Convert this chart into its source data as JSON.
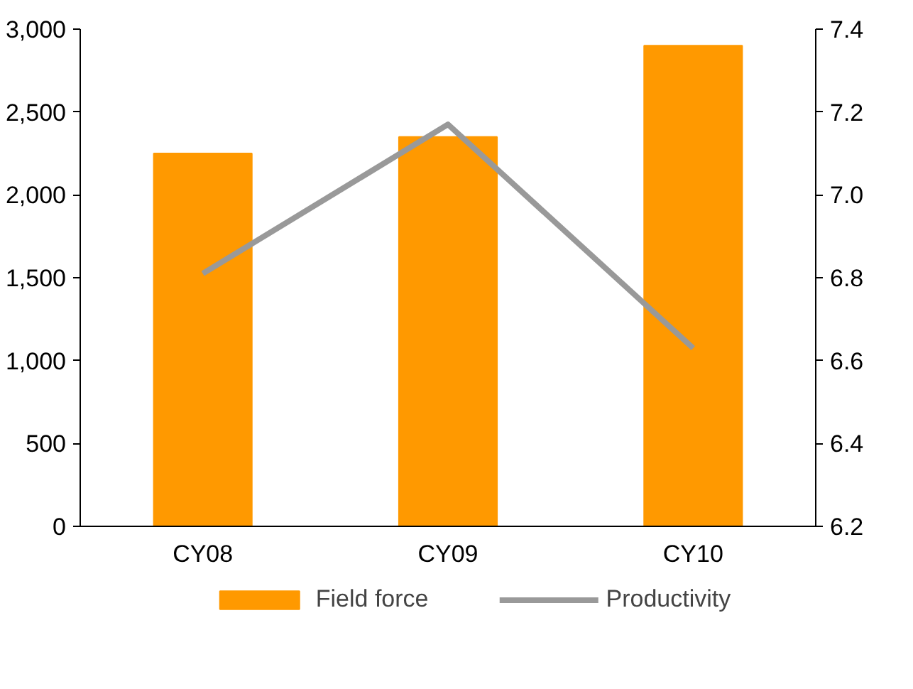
{
  "chart_data": {
    "type": "bar",
    "categories": [
      "CY08",
      "CY09",
      "CY10"
    ],
    "series": [
      {
        "name": "Field force",
        "color": "#ff9900",
        "values": [
          2250,
          2350,
          2900
        ]
      },
      {
        "name": "Productivity",
        "type": "line",
        "axis": "y2",
        "color": "#999999",
        "values": [
          6.81,
          7.17,
          6.63
        ]
      }
    ],
    "ylim": [
      0,
      3000
    ],
    "yticks": [
      0,
      500,
      {
        "value": 1000,
        "label": "1,000"
      },
      {
        "value": 1500,
        "label": "1,500"
      },
      {
        "value": 2000,
        "label": "2,000"
      },
      {
        "value": 2500,
        "label": "2,500"
      },
      {
        "value": 3000,
        "label": "3,000"
      }
    ],
    "y2lim": [
      6.2,
      7.4
    ],
    "y2ticks": [
      6.2,
      6.4,
      6.6,
      6.8,
      {
        "value": 7.0,
        "label": "7.0"
      },
      7.2,
      7.4
    ],
    "grid": false,
    "legend": "bottom",
    "line_style": "solid"
  }
}
